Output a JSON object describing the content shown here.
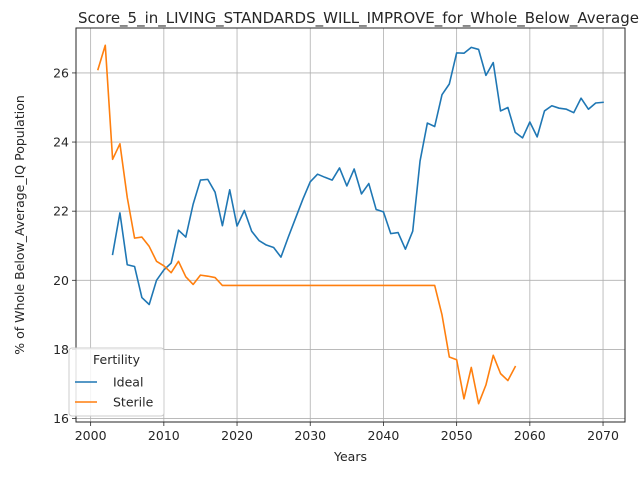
{
  "chart_data": {
    "type": "line",
    "title": "Score_5_in_LIVING_STANDARDS_WILL_IMPROVE_for_Whole_Below_Average",
    "xlabel": "Years",
    "ylabel": "% of Whole Below_Average_IQ Population",
    "xlim": [
      1998,
      2073
    ],
    "ylim": [
      15.9,
      27.3
    ],
    "xticks": [
      2000,
      2010,
      2020,
      2030,
      2040,
      2050,
      2060,
      2070
    ],
    "yticks": [
      16,
      18,
      20,
      22,
      24,
      26
    ],
    "grid": true,
    "legend": {
      "title": "Fertility",
      "placement": "lower-left"
    },
    "series": [
      {
        "name": "Ideal",
        "color": "#1f77b4",
        "x": [
          2003,
          2004,
          2005,
          2006,
          2007,
          2008,
          2009,
          2010,
          2011,
          2012,
          2013,
          2014,
          2015,
          2016,
          2017,
          2018,
          2019,
          2020,
          2021,
          2022,
          2023,
          2024,
          2025,
          2026,
          2027,
          2028,
          2029,
          2030,
          2031,
          2032,
          2033,
          2034,
          2035,
          2036,
          2037,
          2038,
          2039,
          2040,
          2041,
          2042,
          2043,
          2044,
          2045,
          2046,
          2047,
          2048,
          2049,
          2050,
          2051,
          2052,
          2053,
          2054,
          2055,
          2056,
          2057,
          2058,
          2059,
          2060,
          2061,
          2062,
          2063,
          2064,
          2065,
          2066,
          2067,
          2068,
          2069,
          2070
        ],
        "values": [
          20.75,
          21.95,
          20.45,
          20.4,
          19.5,
          19.3,
          20.0,
          20.3,
          20.5,
          21.45,
          21.25,
          22.2,
          22.9,
          22.92,
          22.55,
          21.58,
          22.62,
          21.57,
          22.02,
          21.42,
          21.15,
          21.02,
          20.95,
          20.67,
          21.25,
          21.8,
          22.35,
          22.85,
          23.07,
          22.98,
          22.9,
          23.25,
          22.73,
          23.22,
          22.5,
          22.8,
          22.05,
          21.98,
          21.35,
          21.38,
          20.9,
          21.42,
          23.45,
          24.55,
          24.45,
          25.37,
          25.68,
          26.58,
          26.57,
          26.74,
          26.68,
          25.93,
          26.3,
          24.9,
          25.0,
          24.28,
          24.12,
          24.58,
          24.15,
          24.9,
          25.05,
          24.98,
          24.95,
          24.85,
          25.27,
          24.95,
          25.13,
          25.15
        ]
      },
      {
        "name": "Sterile",
        "color": "#ff7f0e",
        "x": [
          2001,
          2002,
          2003,
          2004,
          2005,
          2006,
          2007,
          2008,
          2009,
          2010,
          2011,
          2012,
          2013,
          2014,
          2015,
          2016,
          2017,
          2018,
          2019,
          2020,
          2021,
          2022,
          2023,
          2024,
          2025,
          2026,
          2027,
          2028,
          2029,
          2030,
          2031,
          2032,
          2033,
          2034,
          2035,
          2036,
          2037,
          2038,
          2039,
          2040,
          2041,
          2042,
          2043,
          2044,
          2045,
          2046,
          2047,
          2048,
          2049,
          2050,
          2051,
          2052,
          2053,
          2054,
          2055,
          2056,
          2057,
          2058
        ],
        "values": [
          26.1,
          26.8,
          23.5,
          23.95,
          22.4,
          21.22,
          21.25,
          20.98,
          20.55,
          20.42,
          20.22,
          20.55,
          20.1,
          19.88,
          20.15,
          20.12,
          20.08,
          19.85,
          19.85,
          19.85,
          19.85,
          19.85,
          19.85,
          19.85,
          19.85,
          19.85,
          19.85,
          19.85,
          19.85,
          19.85,
          19.85,
          19.85,
          19.85,
          19.85,
          19.85,
          19.85,
          19.85,
          19.85,
          19.85,
          19.85,
          19.85,
          19.85,
          19.85,
          19.85,
          19.85,
          19.85,
          19.85,
          19.0,
          17.78,
          17.7,
          16.57,
          17.48,
          16.43,
          16.97,
          17.83,
          17.3,
          17.1,
          17.5
        ]
      }
    ]
  }
}
